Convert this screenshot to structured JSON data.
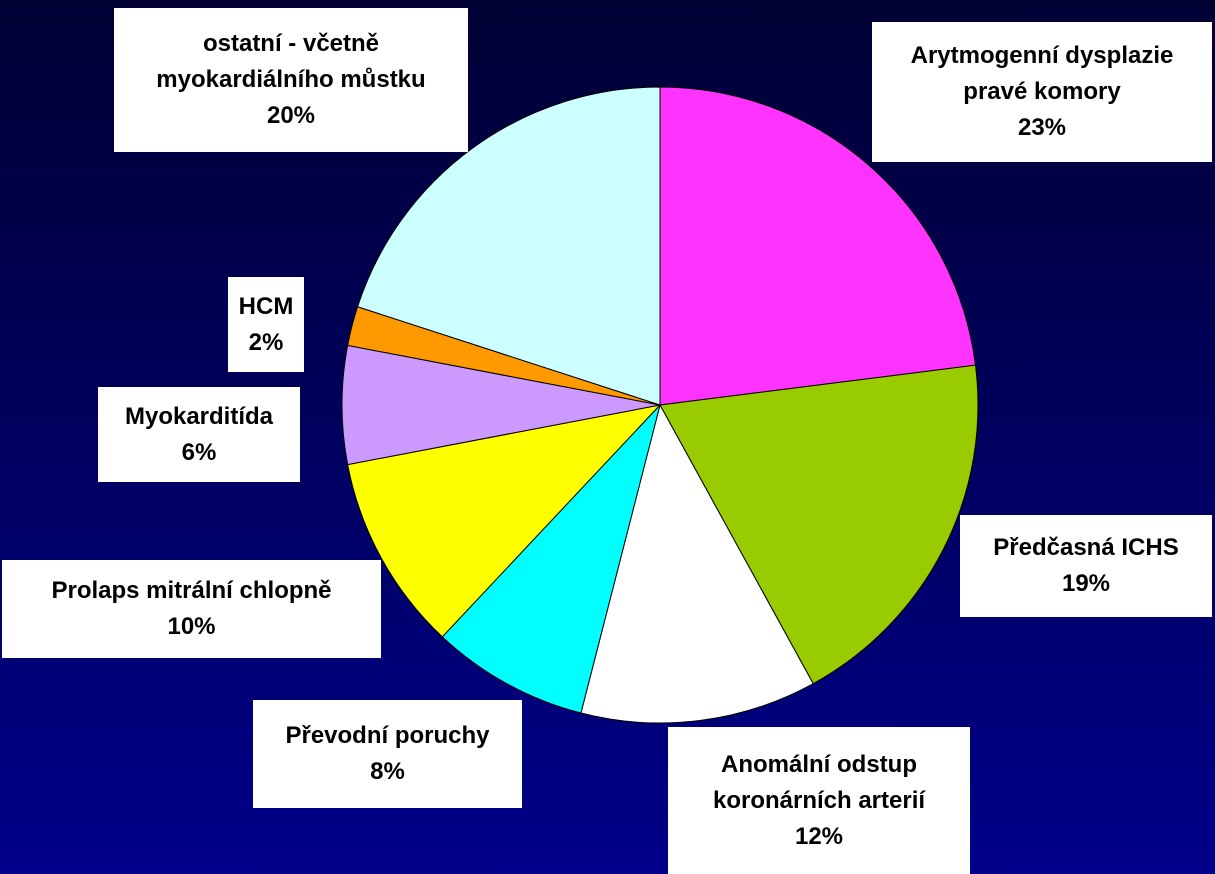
{
  "chart_data": {
    "type": "pie",
    "categories": [
      "Arytmogenní dysplazie pravé komory",
      "Předčasná ICHS",
      "Anomální odstup koronárních arterií",
      "Převodní poruchy",
      "Prolaps mitrální chlopně",
      "Myokarditída",
      "HCM",
      "ostatní - včetně myokardiálního můstku"
    ],
    "values": [
      23,
      19,
      12,
      8,
      10,
      6,
      2,
      20
    ],
    "value_labels": [
      "23%",
      "19%",
      "12%",
      "8%",
      "10%",
      "6%",
      "2%",
      "20%"
    ],
    "colors": [
      "#ff33ff",
      "#99cc00",
      "#ffffff",
      "#00ffff",
      "#ffff00",
      "#cc99ff",
      "#ff9900",
      "#ccffff"
    ]
  }
}
